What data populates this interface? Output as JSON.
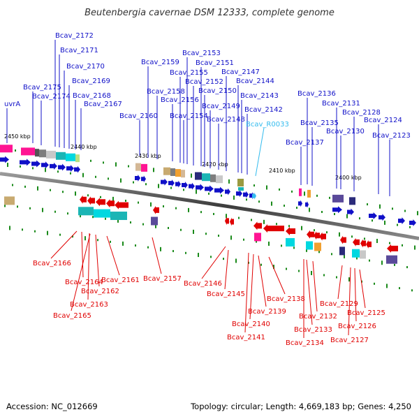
{
  "title": "Beutenbergia cavernae DSM 12333, complete genome",
  "footer": {
    "accession": "Accession: NC_012669",
    "stats": "Topology: circular; Length: 4,669,183 bp; Genes: 4,250"
  },
  "scale_labels": [
    "2450 kbp",
    "2440 kbp",
    "2430 kbp",
    "2420 kbp",
    "2410 kbp",
    "2400 kbp"
  ],
  "forward_genes": [
    "uvrA",
    "Bcav_2175",
    "Bcav_2174",
    "Bcav_2172",
    "Bcav_2171",
    "Bcav_2170",
    "Bcav_2169",
    "Bcav_2168",
    "Bcav_2167",
    "Bcav_2160",
    "Bcav_2159",
    "Bcav_2158",
    "Bcav_2156",
    "Bcav_2155",
    "Bcav_2154",
    "Bcav_2153",
    "Bcav_2152",
    "Bcav_2151",
    "Bcav_2150",
    "Bcav_2149",
    "Bcav_2148",
    "Bcav_2147",
    "Bcav_2144",
    "Bcav_2143",
    "Bcav_2142",
    "Bcav_2137",
    "Bcav_2136",
    "Bcav_2135",
    "Bcav_2131",
    "Bcav_2130",
    "Bcav_2128",
    "Bcav_2124",
    "Bcav_2123"
  ],
  "rna_genes": [
    "Bcav_R0033"
  ],
  "reverse_genes": [
    "Bcav_2166",
    "Bcav_2164",
    "Bcav_2163",
    "Bcav_2165",
    "Bcav_2162",
    "Bcav_2161",
    "Bcav_2157",
    "Bcav_2146",
    "Bcav_2145",
    "Bcav_2140",
    "Bcav_2141",
    "Bcav_2139",
    "Bcav_2138",
    "Bcav_2133",
    "Bcav_2134",
    "Bcav_2132",
    "Bcav_2129",
    "Bcav_2126",
    "Bcav_2127",
    "Bcav_2125"
  ],
  "colors": {
    "forward": "#1010c8",
    "reverse": "#e00000",
    "rna": "#33bbee",
    "backbone": "#555555",
    "tick": "#1a8a1a"
  }
}
